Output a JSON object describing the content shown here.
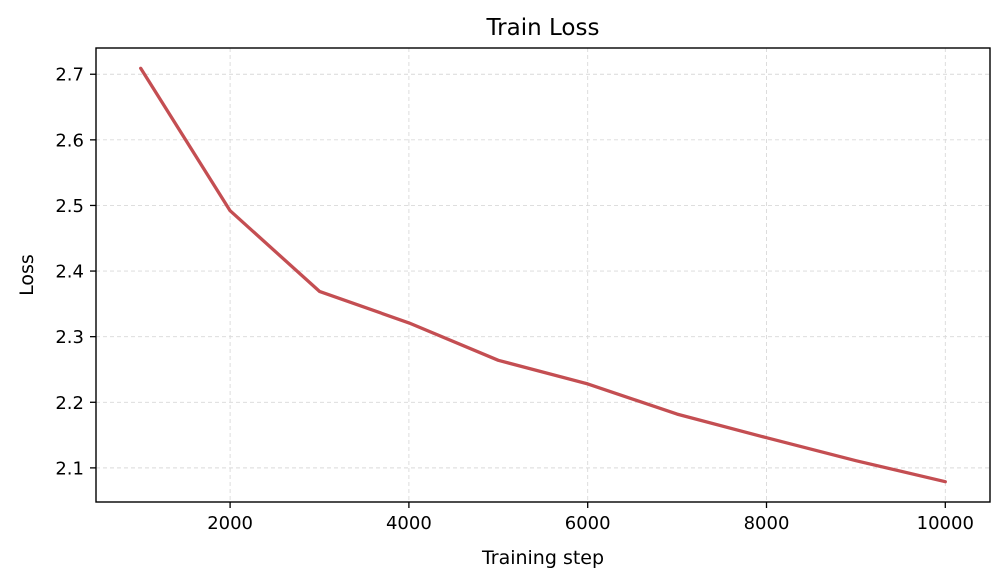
{
  "chart_data": {
    "type": "line",
    "title": "Train Loss",
    "xlabel": "Training step",
    "ylabel": "Loss",
    "xlim": [
      500,
      10500
    ],
    "ylim": [
      2.048,
      2.74
    ],
    "xticks": [
      2000,
      4000,
      6000,
      8000,
      10000
    ],
    "xtick_labels": [
      "2000",
      "4000",
      "6000",
      "8000",
      "10000"
    ],
    "yticks": [
      2.1,
      2.2,
      2.3,
      2.4,
      2.5,
      2.6,
      2.7
    ],
    "ytick_labels": [
      "2.1",
      "2.2",
      "2.3",
      "2.4",
      "2.5",
      "2.6",
      "2.7"
    ],
    "grid": true,
    "color": "#c44e52",
    "x": [
      1000,
      2000,
      3000,
      4000,
      5000,
      6000,
      7000,
      8000,
      9000,
      10000
    ],
    "series": [
      {
        "values": [
          2.709,
          2.492,
          2.369,
          2.321,
          2.264,
          2.228,
          2.182,
          2.146,
          2.111,
          2.079
        ]
      }
    ]
  }
}
